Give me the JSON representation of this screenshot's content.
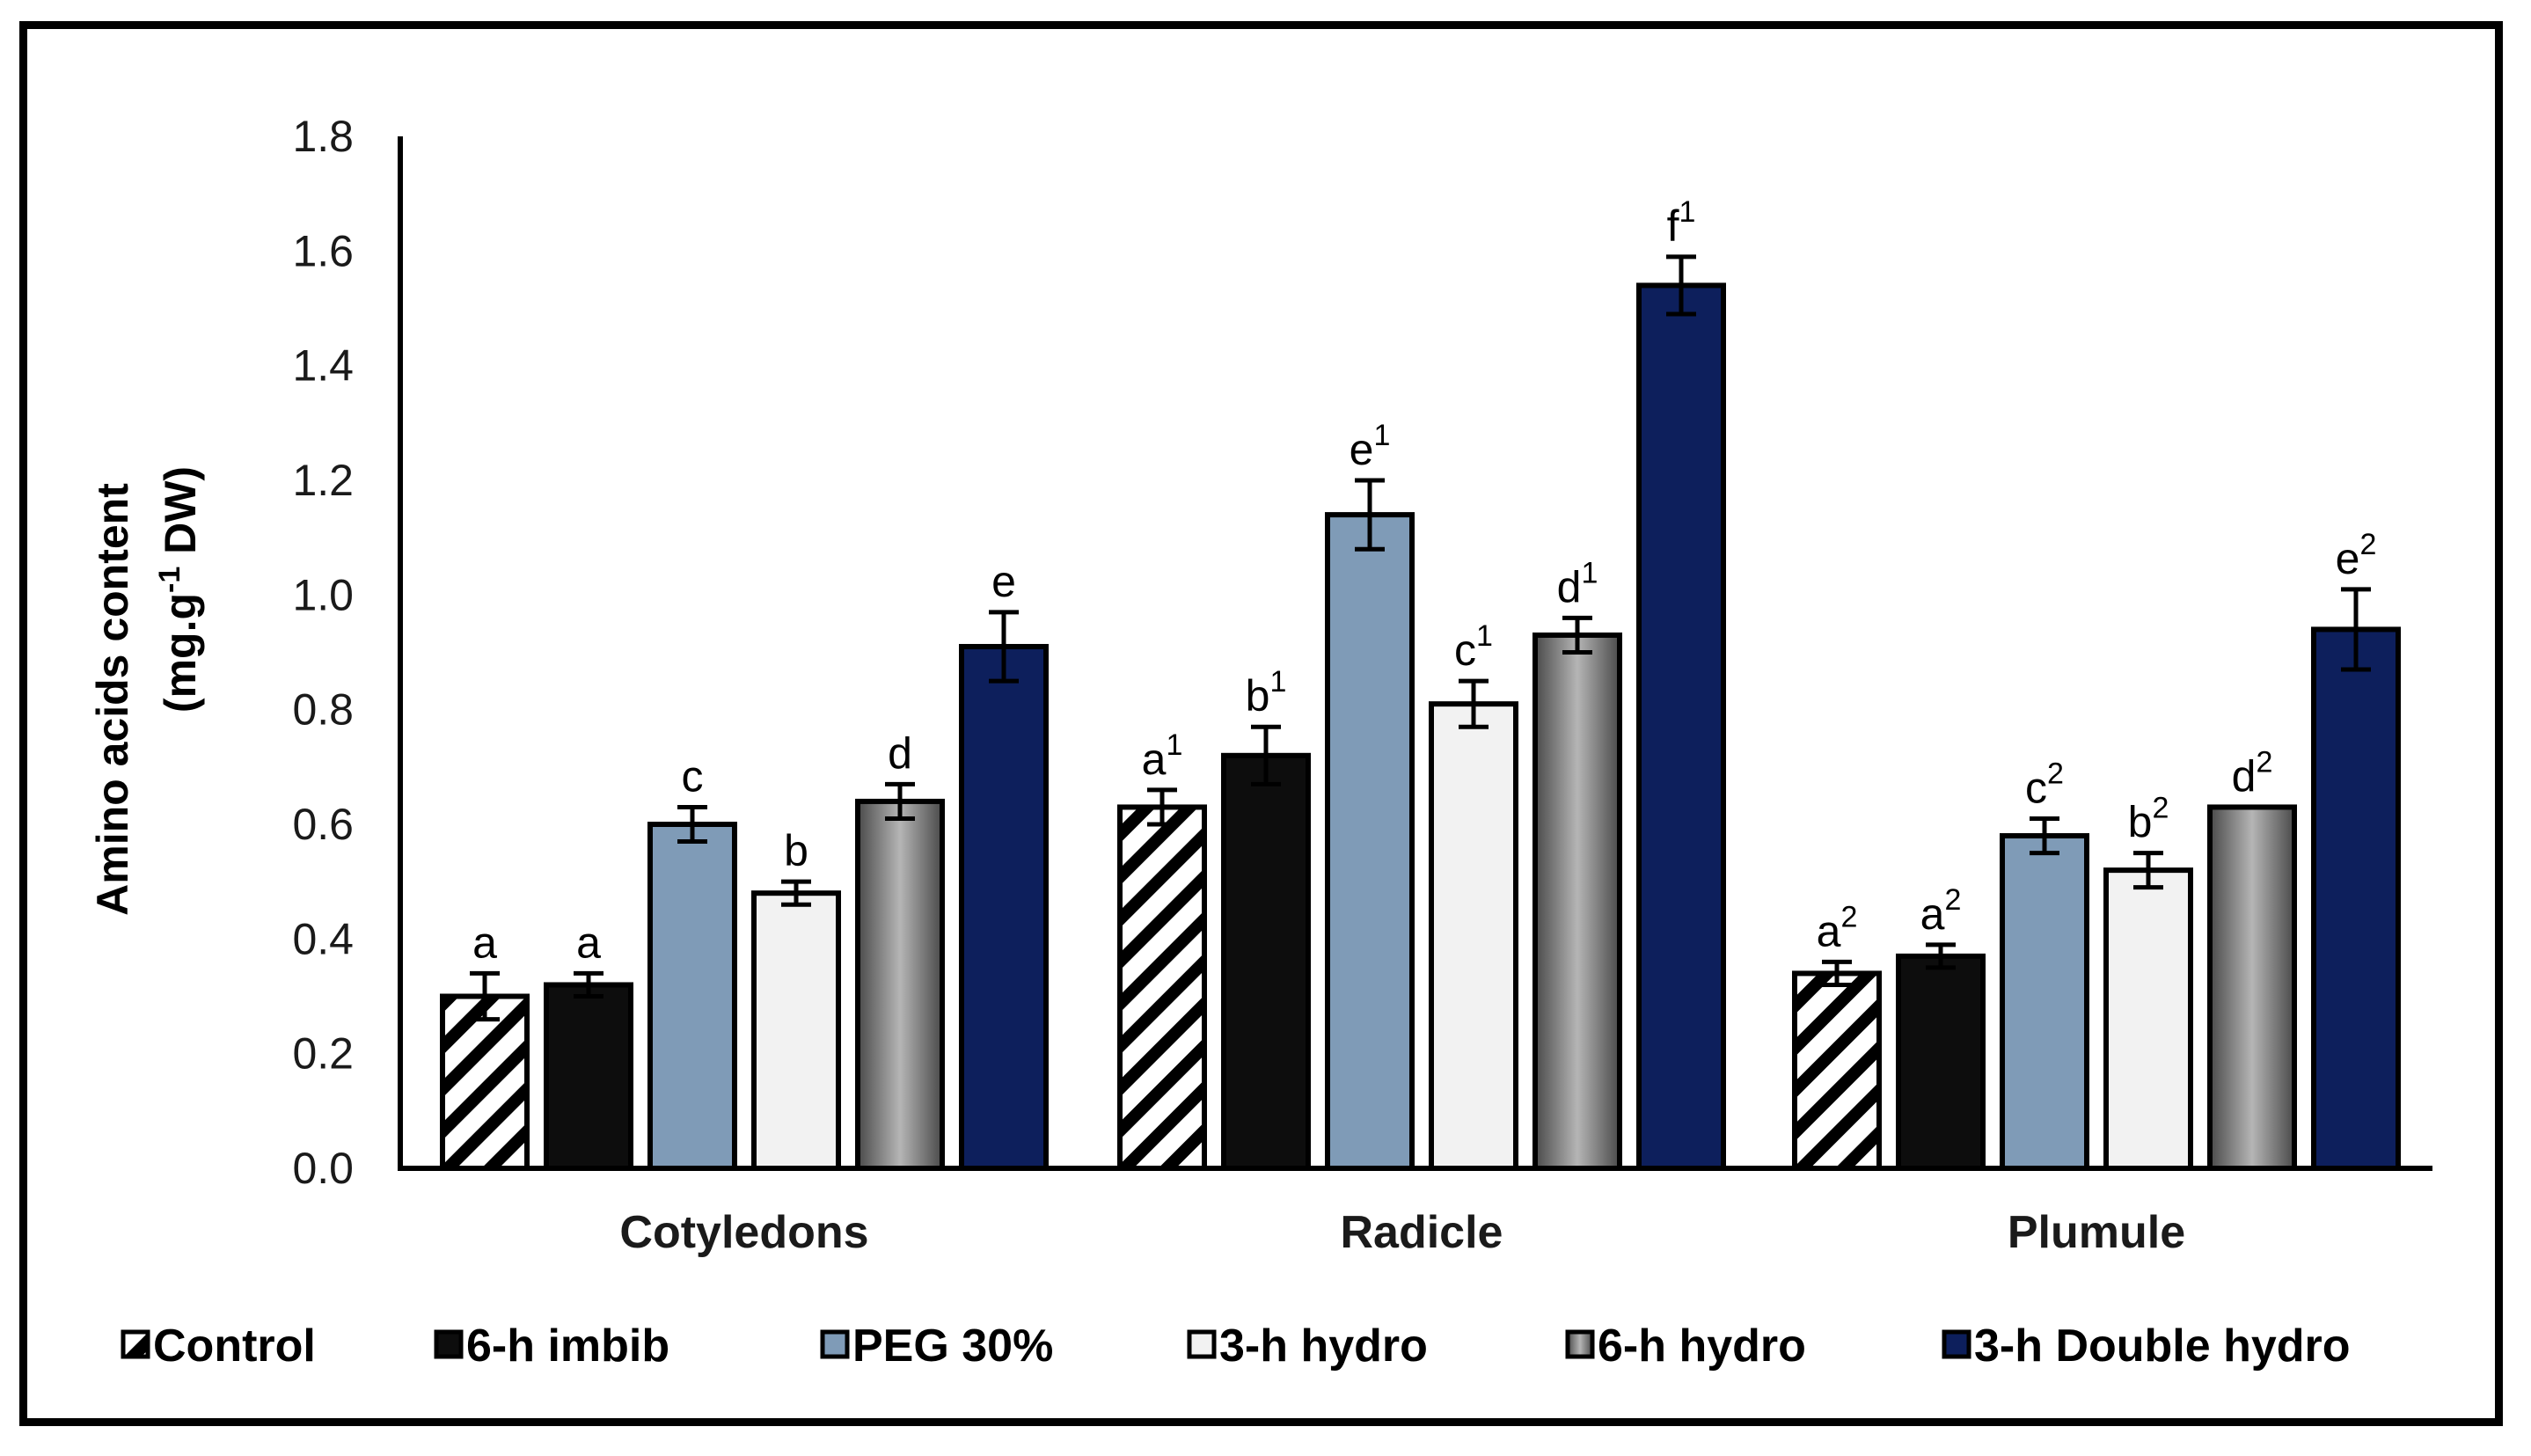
{
  "chart_data": {
    "type": "bar",
    "title": "",
    "xlabel": "",
    "ylabel_line1": "Amino acids content",
    "ylabel_line2_pre": "(mg.g",
    "ylabel_line2_sup": "-1",
    "ylabel_line2_post": " DW)",
    "ylim": [
      0,
      1.8
    ],
    "yticks": [
      "0.0",
      "0.2",
      "0.4",
      "0.6",
      "0.8",
      "1.0",
      "1.2",
      "1.4",
      "1.6",
      "1.8"
    ],
    "categories": [
      "Cotyledons",
      "Radicle",
      "Plumule"
    ],
    "series": [
      {
        "name": "Control",
        "key": "control",
        "fill": "hatch",
        "values": [
          0.3,
          0.63,
          0.34
        ],
        "errors": [
          0.04,
          0.03,
          0.02
        ],
        "labels": [
          "a",
          "a",
          "a"
        ],
        "sups": [
          "",
          "1",
          "2"
        ]
      },
      {
        "name": "6-h imbib",
        "key": "imbib",
        "fill": "#0d0d0d",
        "values": [
          0.32,
          0.72,
          0.37
        ],
        "errors": [
          0.02,
          0.05,
          0.02
        ],
        "labels": [
          "a",
          "b",
          "a"
        ],
        "sups": [
          "",
          "1",
          "2"
        ]
      },
      {
        "name": "PEG 30%",
        "key": "peg",
        "fill": "#7f9bb7",
        "values": [
          0.6,
          1.14,
          0.58
        ],
        "errors": [
          0.03,
          0.06,
          0.03
        ],
        "labels": [
          "c",
          "e",
          "c"
        ],
        "sups": [
          "",
          "1",
          "2"
        ]
      },
      {
        "name": "3-h hydro",
        "key": "hydro3",
        "fill": "#f2f2f2",
        "values": [
          0.48,
          0.81,
          0.52
        ],
        "errors": [
          0.02,
          0.04,
          0.03
        ],
        "labels": [
          "b",
          "c",
          "b"
        ],
        "sups": [
          "",
          "1",
          "2"
        ]
      },
      {
        "name": "6-h hydro",
        "key": "hydro6",
        "fill": "gradient",
        "values": [
          0.64,
          0.93,
          0.63
        ],
        "errors": [
          0.03,
          0.03,
          0.0
        ],
        "labels": [
          "d",
          "d",
          "d"
        ],
        "sups": [
          "",
          "1",
          "2"
        ]
      },
      {
        "name": "3-h Double hydro",
        "key": "double",
        "fill": "#0d1f5c",
        "values": [
          0.91,
          1.54,
          0.94
        ],
        "errors": [
          0.06,
          0.05,
          0.07
        ],
        "labels": [
          "e",
          "f",
          "e"
        ],
        "sups": [
          "",
          "1",
          "2"
        ]
      }
    ]
  }
}
